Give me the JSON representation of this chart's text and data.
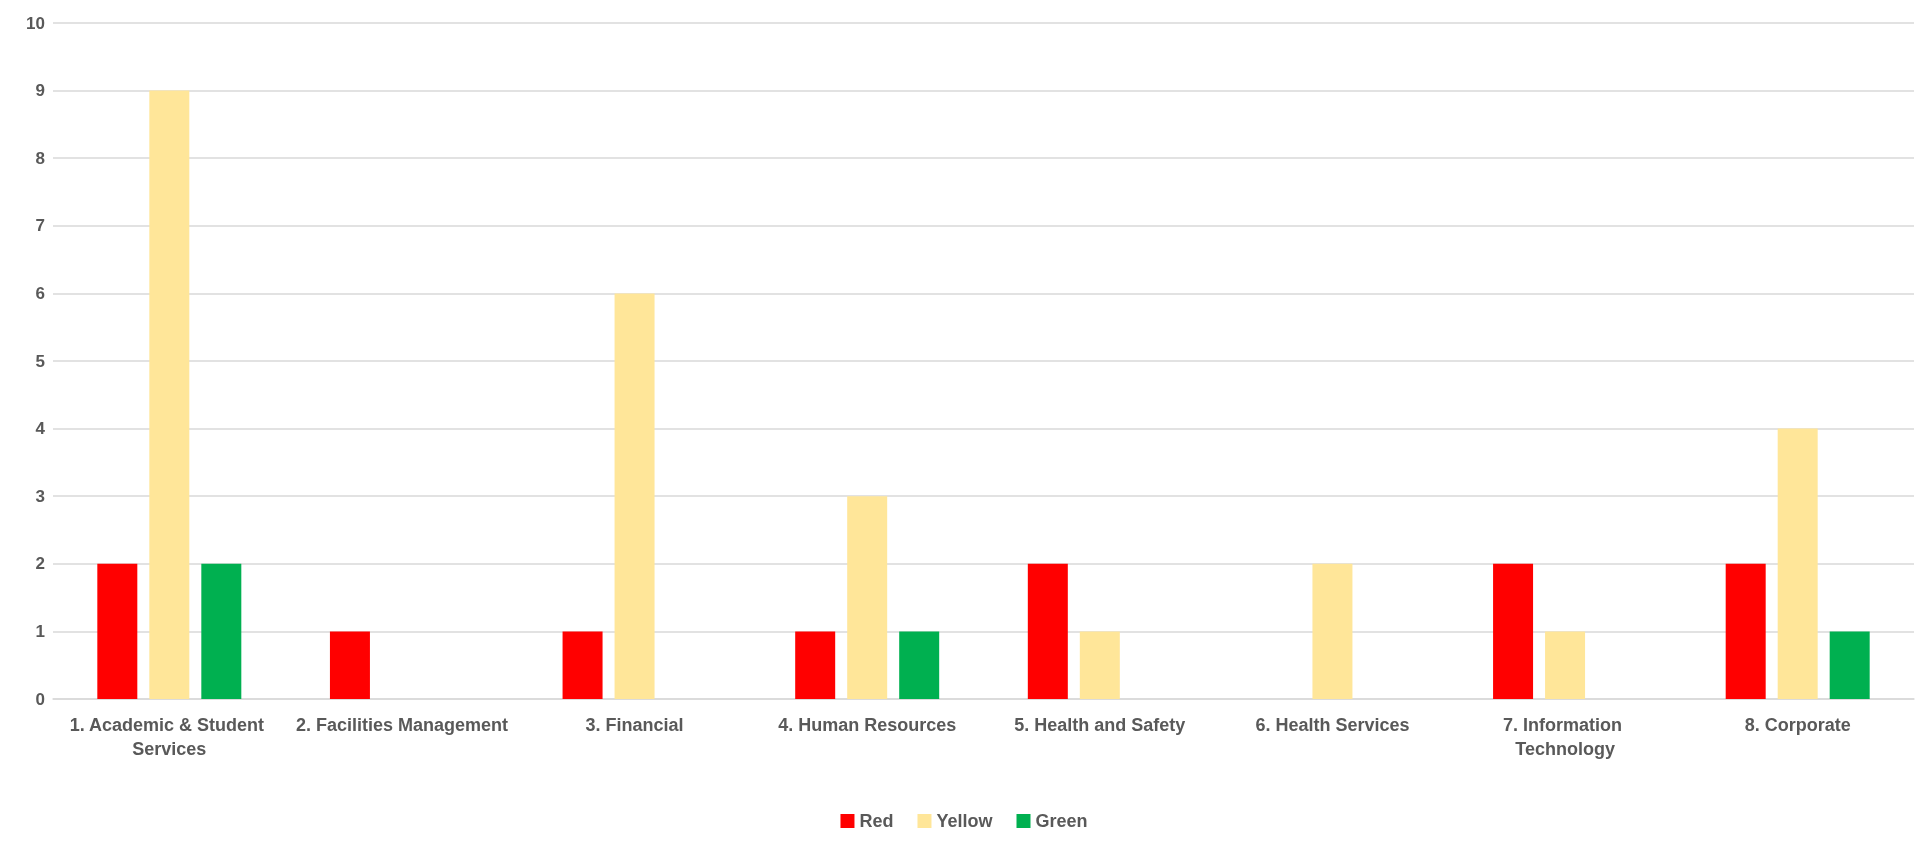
{
  "chart_data": {
    "type": "bar",
    "categories": [
      "1. Academic & Student Services",
      "2. Facilities Management",
      "3. Financial",
      "4. Human Resources",
      "5. Health and Safety",
      "6. Health Services",
      "7. Information Technology",
      "8. Corporate"
    ],
    "series": [
      {
        "name": "Red",
        "color": "#ff0000",
        "values": [
          2,
          1,
          1,
          1,
          2,
          0,
          2,
          2
        ]
      },
      {
        "name": "Yellow",
        "color": "#ffe699",
        "values": [
          9,
          0,
          6,
          3,
          1,
          2,
          1,
          4
        ]
      },
      {
        "name": "Green",
        "color": "#00b050",
        "values": [
          2,
          0,
          0,
          1,
          0,
          0,
          0,
          1
        ]
      }
    ],
    "ylim": [
      0,
      10
    ],
    "yticks": [
      0,
      1,
      2,
      3,
      4,
      5,
      6,
      7,
      8,
      9,
      10
    ],
    "grid": "y",
    "legend": "bottom"
  }
}
